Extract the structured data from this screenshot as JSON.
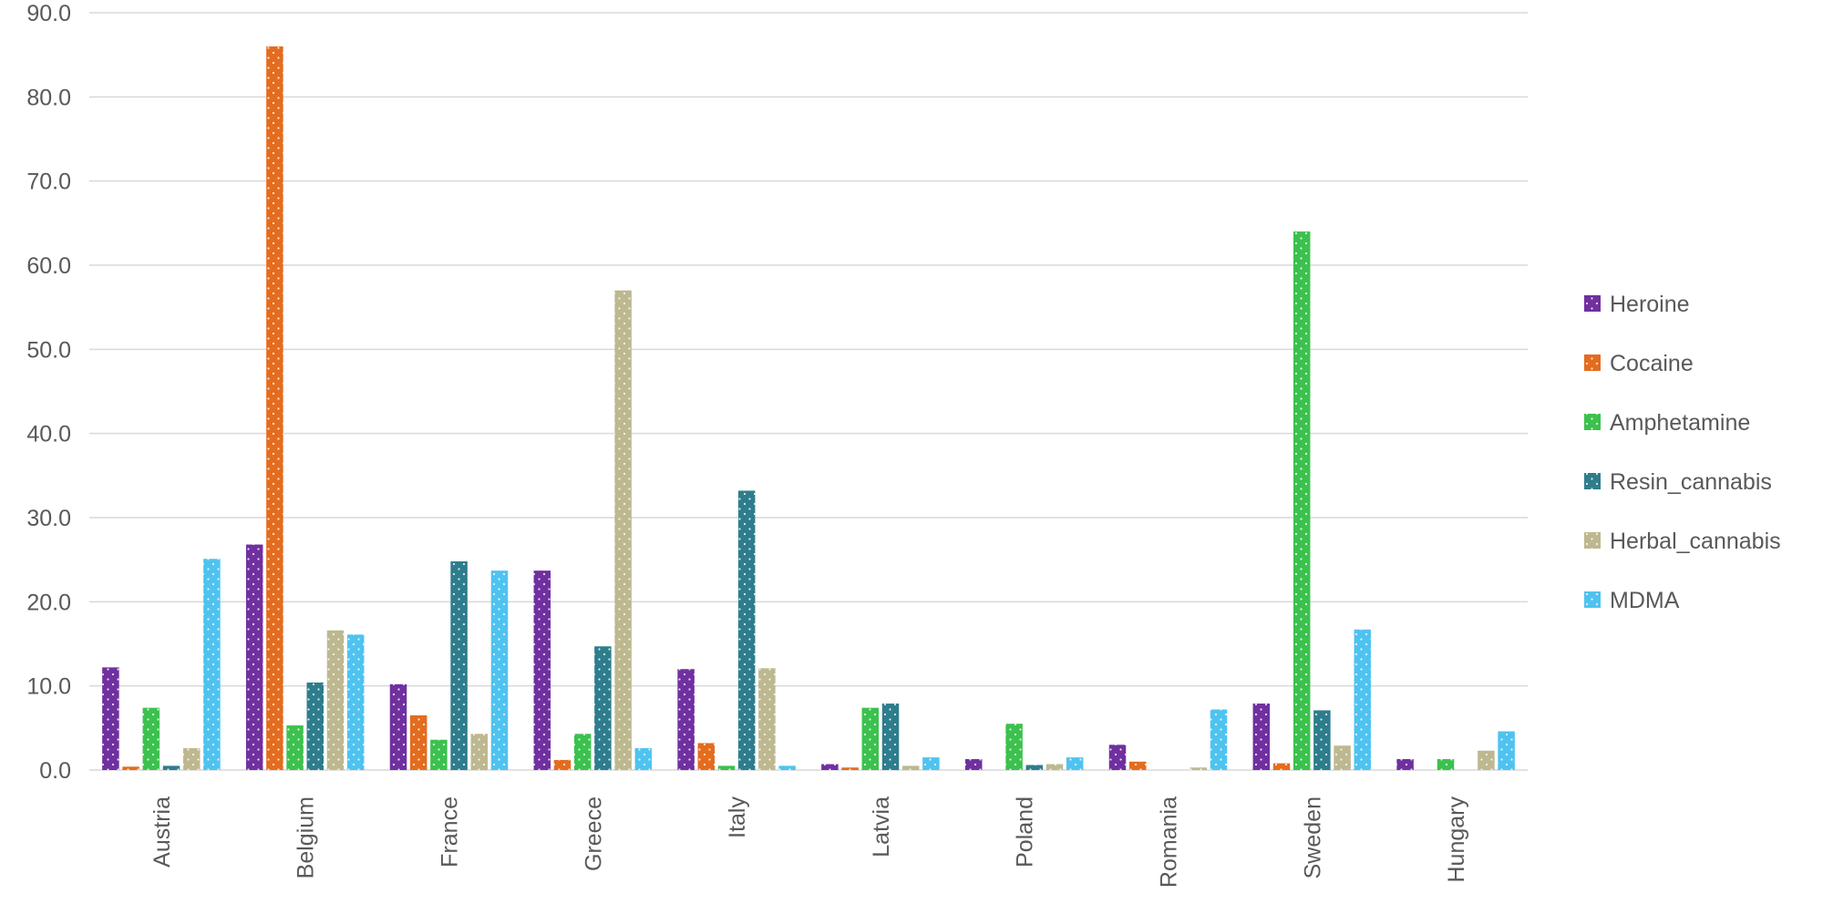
{
  "chart_data": {
    "type": "bar",
    "title": "",
    "xlabel": "",
    "ylabel": "",
    "ylim": [
      0,
      90
    ],
    "yticks": [
      "0.0",
      "10.0",
      "20.0",
      "30.0",
      "40.0",
      "50.0",
      "60.0",
      "70.0",
      "80.0",
      "90.0"
    ],
    "grid": true,
    "legend_position": "right",
    "categories": [
      "Austria",
      "Belgium",
      "France",
      "Greece",
      "Italy",
      "Latvia",
      "Poland",
      "Romania",
      "Sweden",
      "Hungary"
    ],
    "series": [
      {
        "name": "Heroine",
        "color": "#7030a0",
        "values": [
          12.2,
          26.8,
          10.2,
          23.7,
          12.0,
          0.7,
          1.3,
          3.0,
          7.9,
          1.3
        ]
      },
      {
        "name": "Cocaine",
        "color": "#e46c1e",
        "values": [
          0.4,
          86.0,
          6.5,
          1.2,
          3.2,
          0.3,
          0.0,
          1.0,
          0.8,
          0.0
        ]
      },
      {
        "name": "Amphetamine",
        "color": "#3cc14e",
        "values": [
          7.4,
          5.3,
          3.6,
          4.3,
          0.5,
          7.4,
          5.5,
          0.0,
          64.0,
          1.3
        ]
      },
      {
        "name": "Resin_cannabis",
        "color": "#2e7d8c",
        "values": [
          0.5,
          10.4,
          24.8,
          14.7,
          33.2,
          7.9,
          0.6,
          0.0,
          7.1,
          0.0
        ]
      },
      {
        "name": "Herbal_cannabis",
        "color": "#bdb88f",
        "values": [
          2.6,
          16.6,
          4.3,
          57.0,
          12.1,
          0.5,
          0.7,
          0.3,
          2.9,
          2.3
        ]
      },
      {
        "name": "MDMA",
        "color": "#4fc3f0",
        "values": [
          25.1,
          16.1,
          23.7,
          2.6,
          0.5,
          1.5,
          1.5,
          7.2,
          16.7,
          4.6
        ]
      }
    ]
  }
}
